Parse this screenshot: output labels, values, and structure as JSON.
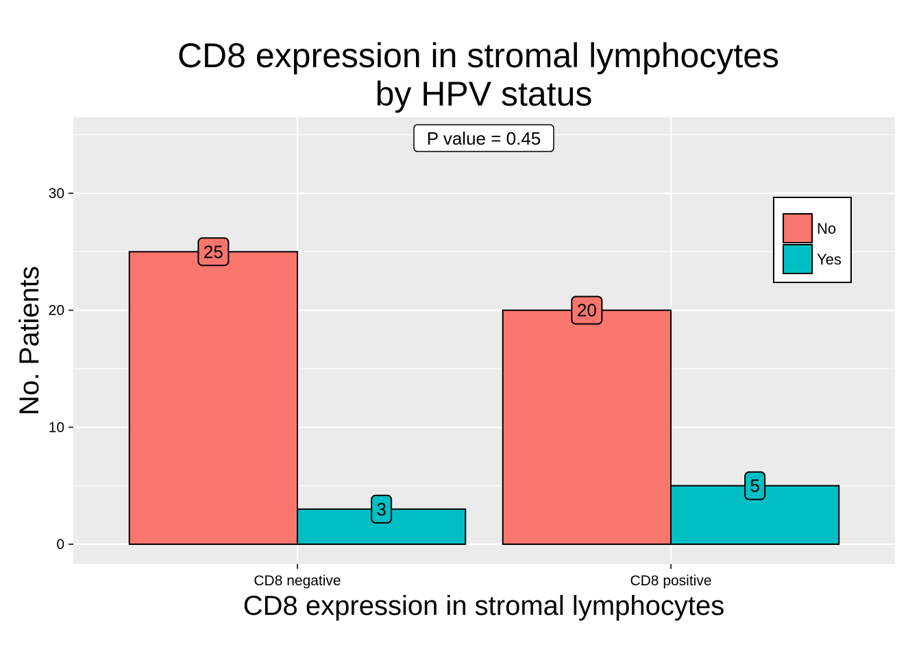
{
  "chart_data": {
    "type": "bar",
    "title_lines": [
      "CD8 expression in stromal lymphocytes",
      "by HPV status"
    ],
    "xlabel": "CD8 expression in stromal lymphocytes",
    "ylabel": "No. Patients",
    "categories": [
      "CD8 negative",
      "CD8 positive"
    ],
    "series": [
      {
        "name": "No",
        "values": [
          25,
          20
        ],
        "color": "#F8766D"
      },
      {
        "name": "Yes",
        "values": [
          3,
          5
        ],
        "color": "#00BFC4"
      }
    ],
    "ylim": [
      -1.7,
      36.5
    ],
    "yticks": [
      0,
      10,
      20,
      30
    ],
    "grid": true,
    "legend_position": "top-right",
    "annotation": "P value = 0.45"
  }
}
